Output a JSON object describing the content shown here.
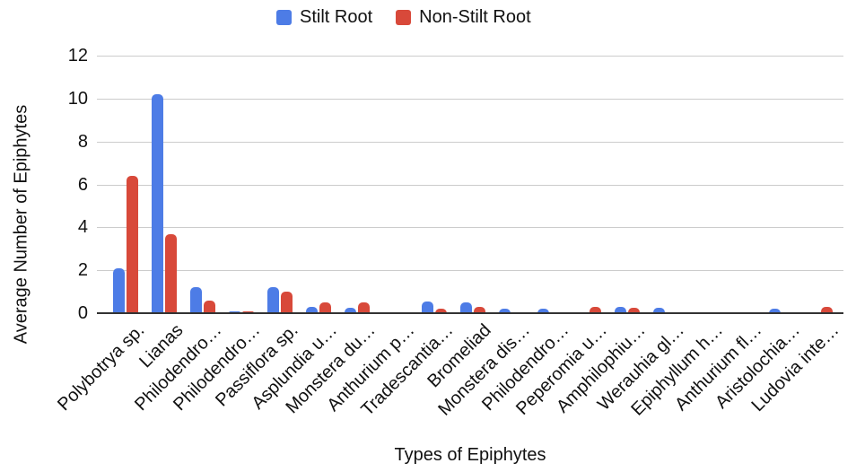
{
  "legend": {
    "items": [
      {
        "label": "Stilt Root",
        "color": "#4d7ce6"
      },
      {
        "label": "Non-Stilt Root",
        "color": "#d8493a"
      }
    ]
  },
  "chart_data": {
    "type": "bar",
    "title": "",
    "xlabel": "Types of Epiphytes",
    "ylabel": "Average Number of Epiphytes",
    "ylim": [
      0,
      12
    ],
    "yticks": [
      0,
      2,
      4,
      6,
      8,
      10,
      12
    ],
    "grid": true,
    "legend_position": "top",
    "categories": [
      "Polybotrya sp.",
      "Lianas",
      "Philodendro…",
      "Philodendro…",
      "Passiflora sp.",
      "Asplundia u…",
      "Monstera du…",
      "Anthurium p…",
      "Tradescantia…",
      "Bromeliad",
      "Monstera dis…",
      "Philodendro…",
      "Peperomia u…",
      "Amphilophiu…",
      "Werauhia gl…",
      "Epiphyllum h…",
      "Anthurium fl…",
      "Aristolochia…",
      "Ludovia inte…"
    ],
    "series": [
      {
        "name": "Stilt Root",
        "color": "#4d7ce6",
        "values": [
          2.1,
          10.2,
          1.2,
          0.1,
          1.2,
          0.3,
          0.25,
          0.05,
          0.55,
          0.5,
          0.2,
          0.2,
          0,
          0.3,
          0.25,
          0.05,
          0.05,
          0.2,
          0
        ]
      },
      {
        "name": "Non-Stilt Root",
        "color": "#d8493a",
        "values": [
          6.4,
          3.7,
          0.6,
          0.1,
          1.0,
          0.5,
          0.5,
          0.05,
          0.2,
          0.3,
          0,
          0,
          0.3,
          0.25,
          0,
          0,
          0,
          0,
          0.3
        ]
      }
    ]
  },
  "colors": {
    "gridline": "#cccccc",
    "baseline": "#333333",
    "text": "#111111"
  }
}
